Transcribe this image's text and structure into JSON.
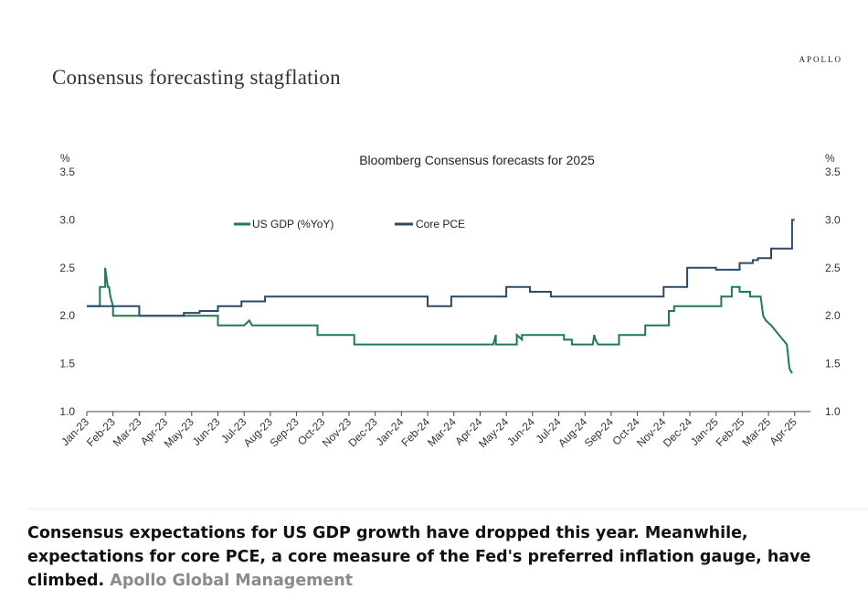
{
  "header": {
    "title": "Consensus forecasting stagflation",
    "brand": "APOLLO"
  },
  "caption": {
    "text": "Consensus expectations for US GDP growth have dropped this year. Meanwhile, expectations for core PCE, a core measure of the Fed's preferred inflation gauge, have climbed.",
    "source": "Apollo Global Management"
  },
  "colors": {
    "gdp": "#1f7a4f",
    "pce": "#2b4a6b"
  },
  "chart_data": {
    "type": "line",
    "title": "Bloomberg Consensus forecasts for 2025",
    "ylabel_left": "%",
    "ylabel_right": "%",
    "ylim": [
      1.0,
      3.5
    ],
    "yticks": [
      "1.0",
      "1.5",
      "2.0",
      "2.5",
      "3.0",
      "3.5"
    ],
    "xlim": [
      0,
      27.6
    ],
    "xticks": [
      "Jan-23",
      "Feb-23",
      "Mar-23",
      "Apr-23",
      "May-23",
      "Jun-23",
      "Jul-23",
      "Aug-23",
      "Sep-23",
      "Oct-23",
      "Nov-23",
      "Dec-23",
      "Jan-24",
      "Feb-24",
      "Mar-24",
      "Apr-24",
      "May-24",
      "Jun-24",
      "Jul-24",
      "Aug-24",
      "Sep-24",
      "Oct-24",
      "Nov-24",
      "Dec-24",
      "Jan-25",
      "Feb-25",
      "Mar-25",
      "Apr-25"
    ],
    "legend": [
      "US GDP (%YoY)",
      "Core PCE"
    ],
    "series": [
      {
        "name": "US GDP (%YoY)",
        "color": "#1f7a4f",
        "x": [
          0,
          0.5,
          0.5,
          0.7,
          0.7,
          0.75,
          0.8,
          0.85,
          0.9,
          0.9,
          1.0,
          1.0,
          3.8,
          4.3,
          4.3,
          5.0,
          5.0,
          6.0,
          6.2,
          6.3,
          6.3,
          8.8,
          8.8,
          10.2,
          10.2,
          15.5,
          15.6,
          15.6,
          15.8,
          15.8,
          16.4,
          16.4,
          16.6,
          16.6,
          18.2,
          18.2,
          18.5,
          18.5,
          19.3,
          19.35,
          19.4,
          19.5,
          20.3,
          20.3,
          21.3,
          21.3,
          22.2,
          22.2,
          22.4,
          22.4,
          24.2,
          24.2,
          24.6,
          24.6,
          24.9,
          24.9,
          25.3,
          25.3,
          25.7,
          25.7,
          25.8,
          25.9,
          26.1,
          26.1,
          26.4,
          26.4,
          26.7,
          26.7,
          26.8,
          26.9
        ],
        "values": [
          2.1,
          2.1,
          2.3,
          2.3,
          2.5,
          2.4,
          2.3,
          2.3,
          2.2,
          2.2,
          2.1,
          2.0,
          2.0,
          2.0,
          2.0,
          2.0,
          1.9,
          1.9,
          1.95,
          1.9,
          1.9,
          1.9,
          1.8,
          1.8,
          1.7,
          1.7,
          1.8,
          1.7,
          1.7,
          1.7,
          1.7,
          1.8,
          1.75,
          1.8,
          1.8,
          1.75,
          1.75,
          1.7,
          1.7,
          1.8,
          1.75,
          1.7,
          1.7,
          1.8,
          1.8,
          1.9,
          1.9,
          2.05,
          2.05,
          2.1,
          2.1,
          2.2,
          2.2,
          2.3,
          2.3,
          2.25,
          2.25,
          2.2,
          2.2,
          2.2,
          2.0,
          1.95,
          1.9,
          1.9,
          1.8,
          1.8,
          1.7,
          1.7,
          1.45,
          1.4
        ]
      },
      {
        "name": "Core PCE",
        "color": "#2b4a6b",
        "x": [
          0,
          0.9,
          0.9,
          2.0,
          2.0,
          3.7,
          3.7,
          4.3,
          4.3,
          5.0,
          5.0,
          5.9,
          5.9,
          6.8,
          6.8,
          13.0,
          13.0,
          13.9,
          13.9,
          16.0,
          16.0,
          16.9,
          16.9,
          17.7,
          17.7,
          22.0,
          22.0,
          22.9,
          22.9,
          24.0,
          24.0,
          24.9,
          24.9,
          25.4,
          25.4,
          25.6,
          25.6,
          26.1,
          26.1,
          26.9,
          26.9,
          27.0
        ],
        "values": [
          2.1,
          2.1,
          2.1,
          2.1,
          2.0,
          2.0,
          2.03,
          2.03,
          2.05,
          2.05,
          2.1,
          2.1,
          2.15,
          2.15,
          2.2,
          2.2,
          2.1,
          2.1,
          2.2,
          2.2,
          2.3,
          2.3,
          2.25,
          2.25,
          2.2,
          2.2,
          2.3,
          2.3,
          2.5,
          2.5,
          2.48,
          2.48,
          2.55,
          2.55,
          2.58,
          2.58,
          2.6,
          2.6,
          2.7,
          2.7,
          3.0,
          3.0
        ]
      }
    ]
  }
}
